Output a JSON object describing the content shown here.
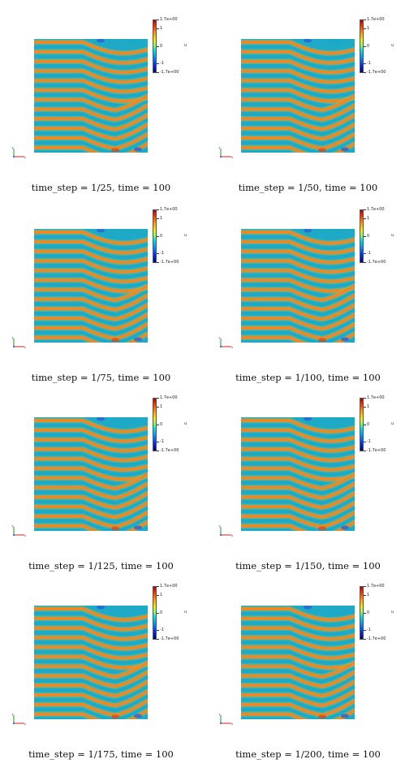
{
  "colorbar": {
    "max_label": "1.7e+00",
    "tick1_label": "1",
    "tick0_label": "0",
    "tickm1_label": "-1",
    "min_label": "-1.7e+00",
    "variable_label": "u",
    "colors": [
      "#b00000",
      "#ff2a00",
      "#ff9a00",
      "#ffe600",
      "#8dff5a",
      "#00e0e6",
      "#009dff",
      "#0033ff",
      "#00007a"
    ]
  },
  "field_colors": {
    "high": "#e88a2a",
    "mid": "#8fd46a",
    "low": "#1aa6c8",
    "peak": "#d84a1a",
    "trough": "#2a5fd8"
  },
  "panels": [
    {
      "caption": "time_step = 1/25, time = 100"
    },
    {
      "caption": "time_step = 1/50, time = 100"
    },
    {
      "caption": "time_step = 1/75, time = 100"
    },
    {
      "caption": "time_step = 1/100, time = 100"
    },
    {
      "caption": "time_step = 1/125, time = 100"
    },
    {
      "caption": "time_step = 1/150, time = 100"
    },
    {
      "caption": "time_step = 1/175, time = 100"
    },
    {
      "caption": "time_step = 1/200, time = 100"
    }
  ]
}
